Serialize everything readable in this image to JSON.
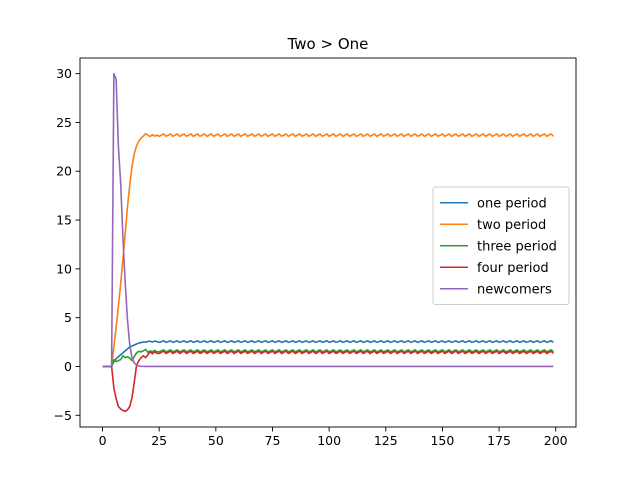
{
  "chart_data": {
    "type": "line",
    "title": "Two > One",
    "xlabel": "",
    "ylabel": "",
    "xlim": [
      -9.95,
      208.95
    ],
    "ylim": [
      -6.2,
      31.6
    ],
    "xticks": [
      0,
      25,
      50,
      75,
      100,
      125,
      150,
      175,
      200
    ],
    "yticks": [
      -5,
      0,
      5,
      10,
      15,
      20,
      25,
      30
    ],
    "grid": false,
    "legend_position": "center-right",
    "series": [
      {
        "name": "one period",
        "color": "#1f77b4",
        "points": [
          [
            0,
            0
          ],
          [
            1,
            0
          ],
          [
            2,
            0
          ],
          [
            3,
            0
          ],
          [
            4,
            0
          ],
          [
            5,
            0.5
          ],
          [
            6,
            0.8
          ],
          [
            7,
            1.0
          ],
          [
            8,
            1.2
          ],
          [
            9,
            1.4
          ],
          [
            10,
            1.6
          ],
          [
            11,
            1.8
          ],
          [
            12,
            2.0
          ],
          [
            13,
            2.1
          ],
          [
            14,
            2.2
          ],
          [
            15,
            2.3
          ],
          [
            16,
            2.4
          ],
          [
            17,
            2.45
          ],
          [
            18,
            2.5
          ],
          [
            19,
            2.5
          ],
          [
            20,
            2.55
          ],
          [
            21,
            2.6
          ],
          [
            22,
            2.5
          ],
          [
            23,
            2.6
          ],
          [
            24,
            2.55
          ]
        ],
        "steady": {
          "from": 25,
          "to": 199,
          "base": 2.55,
          "amp": 0.08
        }
      },
      {
        "name": "two period",
        "color": "#ff7f0e",
        "points": [
          [
            0,
            0
          ],
          [
            1,
            0
          ],
          [
            2,
            0
          ],
          [
            3,
            0
          ],
          [
            4,
            0
          ],
          [
            5,
            2.0
          ],
          [
            6,
            4.0
          ],
          [
            7,
            6.2
          ],
          [
            8,
            8.5
          ],
          [
            9,
            11.0
          ],
          [
            10,
            13.6
          ],
          [
            11,
            16.3
          ],
          [
            12,
            18.6
          ],
          [
            13,
            20.5
          ],
          [
            14,
            21.8
          ],
          [
            15,
            22.6
          ],
          [
            16,
            23.1
          ],
          [
            17,
            23.4
          ],
          [
            18,
            23.6
          ],
          [
            19,
            23.85
          ],
          [
            20,
            23.7
          ],
          [
            21,
            23.55
          ],
          [
            22,
            23.75
          ],
          [
            23,
            23.6
          ],
          [
            24,
            23.7
          ]
        ],
        "steady": {
          "from": 25,
          "to": 199,
          "base": 23.7,
          "amp": 0.12
        }
      },
      {
        "name": "three period",
        "color": "#2ca02c",
        "points": [
          [
            0,
            0
          ],
          [
            1,
            0
          ],
          [
            2,
            0
          ],
          [
            3,
            0
          ],
          [
            4,
            0
          ],
          [
            5,
            0.7
          ],
          [
            6,
            0.5
          ],
          [
            7,
            0.6
          ],
          [
            8,
            0.7
          ],
          [
            9,
            1.1
          ],
          [
            10,
            0.9
          ],
          [
            11,
            1.0
          ],
          [
            12,
            0.85
          ],
          [
            13,
            0.6
          ],
          [
            14,
            1.0
          ],
          [
            15,
            1.4
          ],
          [
            16,
            1.55
          ],
          [
            17,
            1.5
          ],
          [
            18,
            1.6
          ],
          [
            19,
            1.75
          ],
          [
            20,
            1.45
          ],
          [
            21,
            1.6
          ],
          [
            22,
            1.5
          ],
          [
            23,
            1.65
          ],
          [
            24,
            1.5
          ]
        ],
        "steady": {
          "from": 25,
          "to": 199,
          "base": 1.6,
          "amp": 0.1
        }
      },
      {
        "name": "four period",
        "color": "#d62728",
        "points": [
          [
            0,
            0
          ],
          [
            1,
            0
          ],
          [
            2,
            0
          ],
          [
            3,
            0
          ],
          [
            4,
            0
          ],
          [
            5,
            -2.2
          ],
          [
            6,
            -3.3
          ],
          [
            7,
            -4.1
          ],
          [
            8,
            -4.35
          ],
          [
            9,
            -4.5
          ],
          [
            10,
            -4.6
          ],
          [
            11,
            -4.45
          ],
          [
            12,
            -4.1
          ],
          [
            13,
            -3.2
          ],
          [
            14,
            -1.6
          ],
          [
            15,
            0.1
          ],
          [
            16,
            0.6
          ],
          [
            17,
            0.9
          ],
          [
            18,
            1.1
          ],
          [
            19,
            0.9
          ],
          [
            20,
            1.2
          ],
          [
            21,
            1.5
          ],
          [
            22,
            1.3
          ],
          [
            23,
            1.5
          ],
          [
            24,
            1.35
          ]
        ],
        "steady": {
          "from": 25,
          "to": 199,
          "base": 1.45,
          "amp": 0.12
        }
      },
      {
        "name": "newcomers",
        "color": "#9467bd",
        "points": [
          [
            0,
            0
          ],
          [
            1,
            0
          ],
          [
            2,
            0
          ],
          [
            3,
            0
          ],
          [
            4,
            0
          ],
          [
            5,
            30.0
          ],
          [
            6,
            29.4
          ],
          [
            7,
            22.5
          ],
          [
            8,
            18.8
          ],
          [
            9,
            13.2
          ],
          [
            10,
            8.6
          ],
          [
            11,
            4.8
          ],
          [
            12,
            2.2
          ],
          [
            13,
            0.9
          ],
          [
            14,
            0.35
          ],
          [
            15,
            0.15
          ],
          [
            16,
            0.05
          ],
          [
            17,
            0.02
          ],
          [
            18,
            0.01
          ],
          [
            19,
            0
          ],
          [
            20,
            0
          ]
        ],
        "steady": {
          "from": 21,
          "to": 199,
          "base": 0.0,
          "amp": 0.0
        }
      }
    ]
  }
}
